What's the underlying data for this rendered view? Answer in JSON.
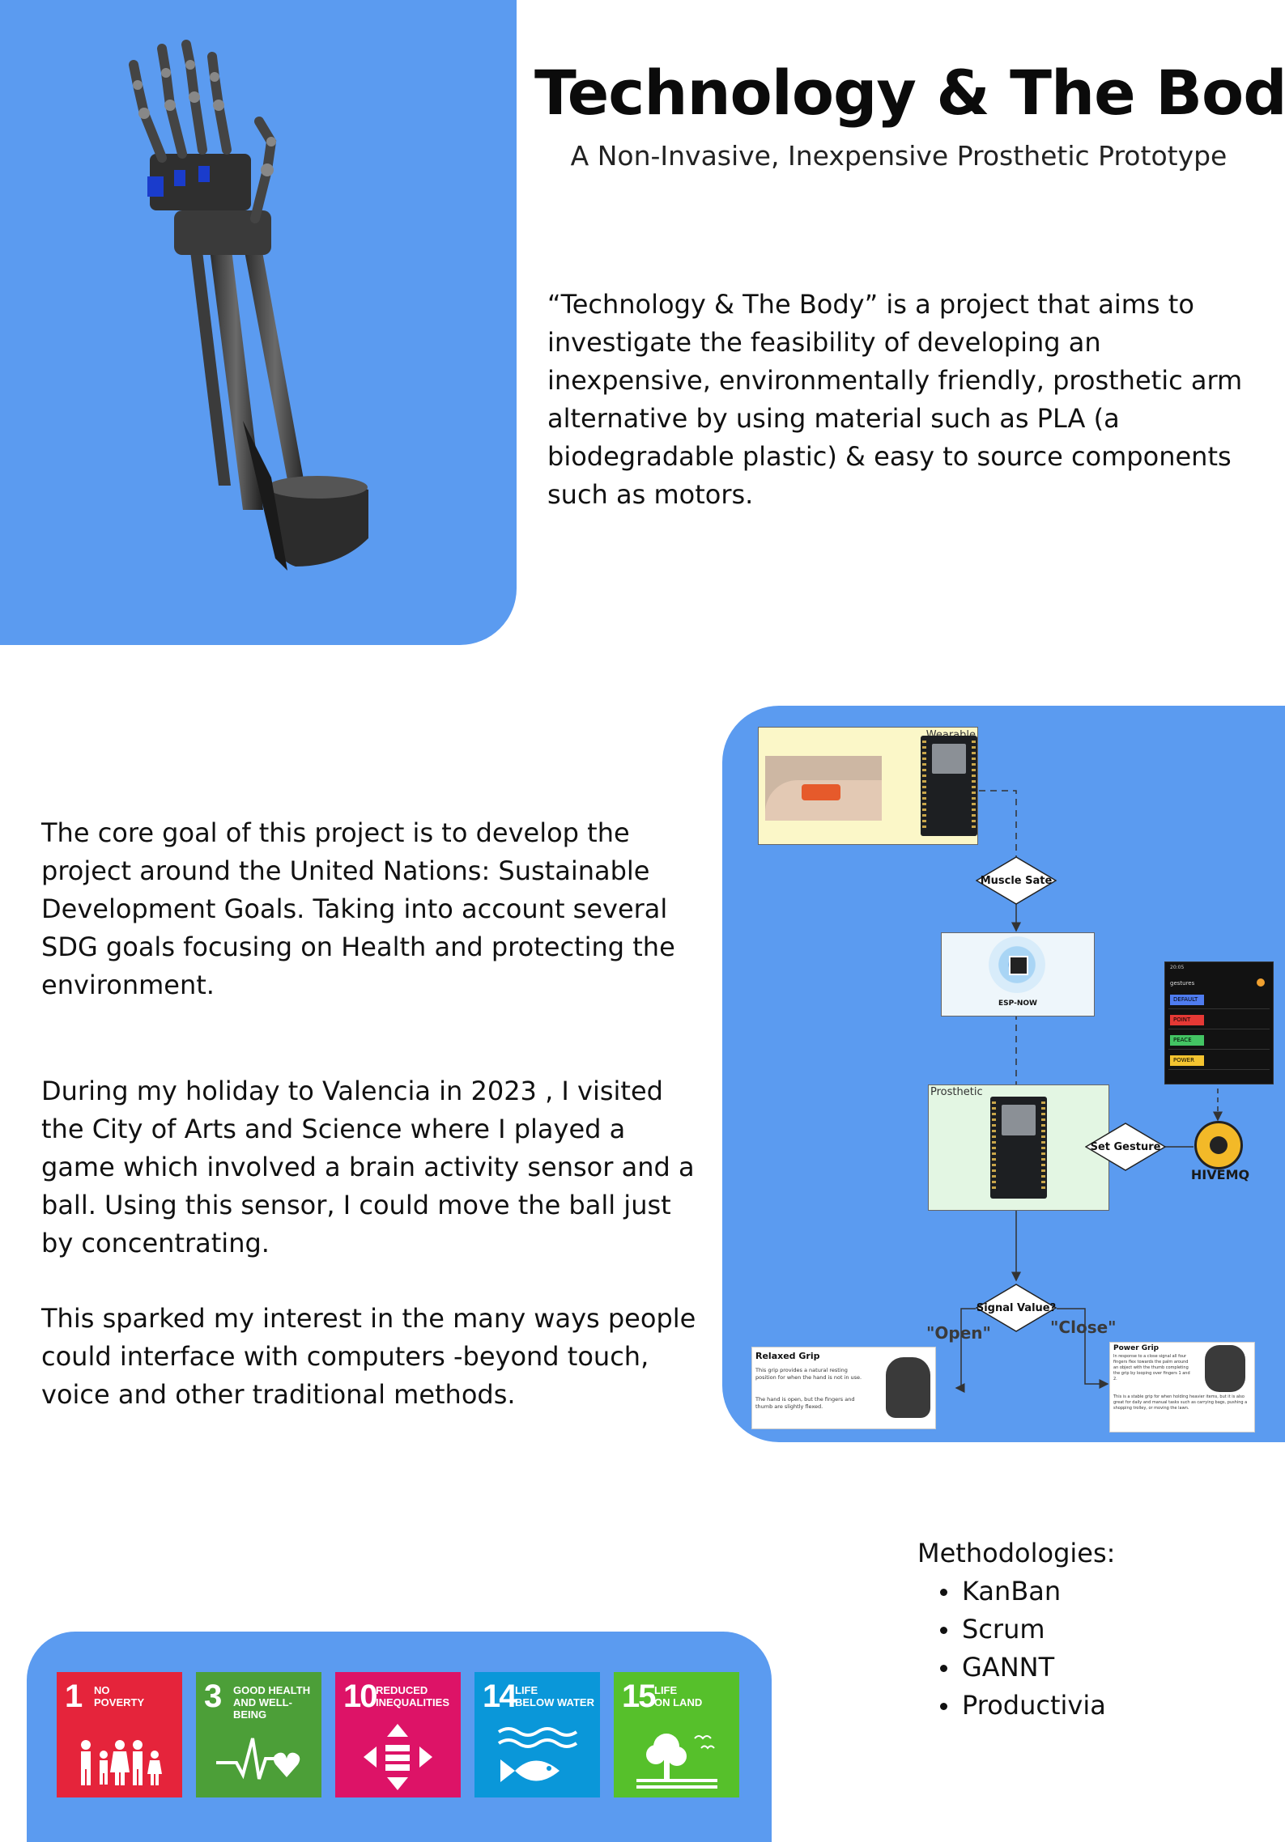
{
  "header": {
    "title": "Technology & The Body",
    "subtitle": "A Non-Invasive, Inexpensive Prosthetic Prototype"
  },
  "intro": "“Technology & The Body” is a project that aims to investigate the feasibility of developing an inexpensive, environmentally friendly, prosthetic arm alternative by using material such as PLA (a biodegradable plastic) & easy to source components such as motors.",
  "body": {
    "goal": "The core goal of this project is to develop the project around the United Nations: Sustainable Development Goals. Taking into account several SDG goals focusing on Health and protecting the environment.",
    "story": "During my holiday to Valencia in 2023 , I visited the City of Arts and Science where I played a game which involved a brain activity sensor and a ball. Using this sensor, I could move the ball just by concentrating.",
    "interest": "This sparked my interest in the many ways people could interface with computers -beyond touch, voice and other traditional methods."
  },
  "diagram": {
    "wearable_label": "Wearable",
    "muscle_state": "Muscle Sate",
    "espnow_label": "ESP-NOW",
    "prosthetic_label": "Prosthetic",
    "set_gesture": "Set Gesture",
    "hivemq_label": "HIVEMQ",
    "signal_value": "Signal Value?",
    "open_label": "\"Open\"",
    "close_label": "\"Close\"",
    "app": {
      "time": "20:05",
      "header": "gestures",
      "gestures": [
        "DEFAULT",
        "POINT",
        "PEACE",
        "POWER"
      ],
      "colors": [
        "#4f7cf0",
        "#e53935",
        "#43c463",
        "#f4c430"
      ]
    },
    "relaxed": {
      "title": "Relaxed Grip",
      "text1": "This grip provides a natural resting position for when the hand is not in use.",
      "text2": "The hand is open, but the fingers and thumb are slightly flexed."
    },
    "power": {
      "title": "Power Grip",
      "text1": "In response to a close signal all four fingers flex towards the palm around an object with the thumb completing the grip by looping over fingers 1 and 2.",
      "text2": "This is a stable grip for when holding heavier items, but it is also great for daily and manual tasks such as carrying bags, pushing a shopping trolley, or moving the lawn."
    }
  },
  "methodologies": {
    "title": "Methodologies:",
    "items": [
      "KanBan",
      "Scrum",
      "GANNT",
      "Productivia"
    ]
  },
  "sdgs": [
    {
      "number": "1",
      "line1": "NO",
      "line2": "POVERTY",
      "color": "#e5243b",
      "icon": "family-icon"
    },
    {
      "number": "3",
      "line1": "GOOD HEALTH",
      "line2": "AND WELL-BEING",
      "color": "#4c9f38",
      "icon": "heartbeat-icon"
    },
    {
      "number": "10",
      "line1": "REDUCED",
      "line2": "INEQUALITIES",
      "color": "#dd1367",
      "icon": "equality-icon"
    },
    {
      "number": "14",
      "line1": "LIFE",
      "line2": "BELOW WATER",
      "color": "#0a97d9",
      "icon": "fish-icon"
    },
    {
      "number": "15",
      "line1": "LIFE",
      "line2": "ON LAND",
      "color": "#56c02b",
      "icon": "tree-icon"
    }
  ],
  "colors": {
    "panel_blue": "#5b9bf0",
    "wearable_fill": "#fbf7c8",
    "prosthetic_fill": "#e3f6e3"
  }
}
